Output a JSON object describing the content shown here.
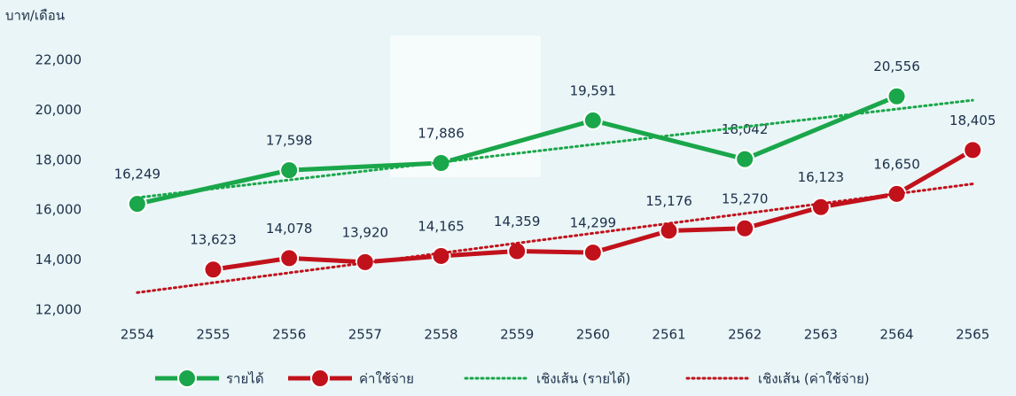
{
  "chart_data": {
    "type": "line",
    "y_axis_label": "บาท/เดือน",
    "xlim": [
      2553.5,
      2565.5
    ],
    "xticks": [
      2554,
      2555,
      2556,
      2557,
      2558,
      2559,
      2560,
      2561,
      2562,
      2563,
      2564,
      2565
    ],
    "ylim": [
      12000,
      22000
    ],
    "yticks": [
      {
        "value": 12000,
        "label": "12,000"
      },
      {
        "value": 14000,
        "label": "14,000"
      },
      {
        "value": 16000,
        "label": "16,000"
      },
      {
        "value": 18000,
        "label": "18,000"
      },
      {
        "value": 20000,
        "label": "20,000"
      },
      {
        "value": 22000,
        "label": "22,000"
      }
    ],
    "series": [
      {
        "name": "รายได้",
        "color": "#1aa64a",
        "style": "solid",
        "markers": true,
        "x": [
          2554,
          2556,
          2558,
          2560,
          2562,
          2564
        ],
        "values": [
          16249,
          17598,
          17886,
          19591,
          18042,
          20556
        ],
        "value_labels": [
          "16,249",
          "17,598",
          "17,886",
          "19,591",
          "18,042",
          "20,556"
        ]
      },
      {
        "name": "ค่าใช้จ่าย",
        "color": "#c1121c",
        "style": "solid",
        "markers": true,
        "x": [
          2555,
          2556,
          2557,
          2558,
          2559,
          2560,
          2561,
          2562,
          2563,
          2564,
          2565
        ],
        "values": [
          13623,
          14078,
          13920,
          14165,
          14359,
          14299,
          15176,
          15270,
          16123,
          16650,
          18405
        ],
        "value_labels": [
          "13,623",
          "14,078",
          "13,920",
          "14,165",
          "14,359",
          "14,299",
          "15,176",
          "15,270",
          "16,123",
          "16,650",
          "18,405"
        ]
      },
      {
        "name": "เชิงเส้น (รายได้)",
        "color": "#1aa64a",
        "style": "dotted",
        "markers": false,
        "x": [
          2554,
          2565
        ],
        "values": [
          16500,
          20400
        ]
      },
      {
        "name": "เชิงเส้น (ค่าใช้จ่าย)",
        "color": "#c1121c",
        "style": "dotted",
        "markers": false,
        "x": [
          2554,
          2565
        ],
        "values": [
          12700,
          17050
        ]
      }
    ]
  }
}
